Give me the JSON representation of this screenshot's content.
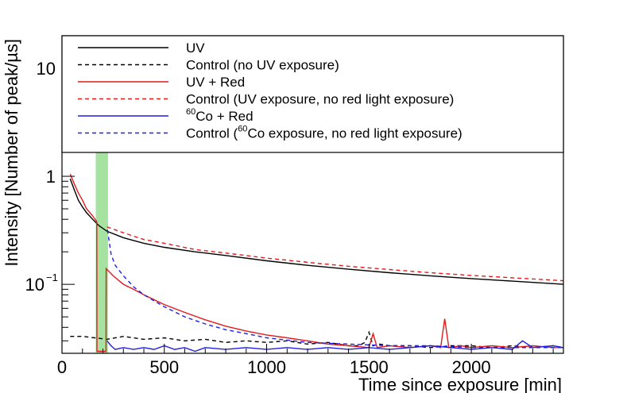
{
  "chart_data": {
    "type": "line",
    "title": "",
    "xlabel": "Time since exposure [min]",
    "ylabel": "Intensity [Number of peak/µs]",
    "xscale": "linear",
    "yscale": "log",
    "xlim": [
      0,
      2450
    ],
    "ylim": [
      0.023,
      20
    ],
    "x_ticks": [
      0,
      500,
      1000,
      1500,
      2000
    ],
    "x_tick_labels": [
      "0",
      "500",
      "1000",
      "1500",
      "2000"
    ],
    "y_ticks": [
      0.1,
      1,
      10
    ],
    "y_tick_labels_main": [
      "10",
      "1",
      "10"
    ],
    "y_tick_label_exponent": "−1",
    "legend_location": "top",
    "highlight_band": {
      "x_range": [
        165,
        225
      ],
      "color": "#a6e3a1",
      "label": ""
    },
    "colors": {
      "black": "#000000",
      "red": "#e41a1c",
      "blue": "#1f1fe6"
    },
    "series": [
      {
        "name": "UV",
        "label_main": "UV",
        "label_sup": "",
        "label_rest": "",
        "color": "#000000",
        "dash": "solid",
        "x": [
          40,
          60,
          80,
          100,
          120,
          150,
          180,
          220,
          300,
          400,
          500,
          650,
          800,
          1000,
          1200,
          1400,
          1600,
          1800,
          2000,
          2200,
          2450
        ],
        "y": [
          0.95,
          0.75,
          0.6,
          0.52,
          0.46,
          0.4,
          0.35,
          0.31,
          0.27,
          0.24,
          0.22,
          0.2,
          0.185,
          0.165,
          0.15,
          0.138,
          0.128,
          0.12,
          0.113,
          0.107,
          0.1
        ]
      },
      {
        "name": "Control (no UV exposure)",
        "label_main": "Control (no UV exposure)",
        "label_sup": "",
        "label_rest": "",
        "color": "#000000",
        "dash": "dashed",
        "x": [
          40,
          100,
          160,
          220,
          300,
          400,
          500,
          600,
          700,
          800,
          900,
          1000,
          1100,
          1200,
          1300,
          1400,
          1450,
          1480,
          1500,
          1520,
          1550,
          1600,
          1700,
          1800,
          1900,
          2000,
          2100,
          2200,
          2300,
          2400,
          2450
        ],
        "y": [
          0.033,
          0.033,
          0.032,
          0.031,
          0.033,
          0.031,
          0.032,
          0.03,
          0.031,
          0.029,
          0.03,
          0.029,
          0.03,
          0.028,
          0.029,
          0.027,
          0.027,
          0.029,
          0.036,
          0.027,
          0.028,
          0.027,
          0.027,
          0.026,
          0.027,
          0.027,
          0.026,
          0.027,
          0.026,
          0.027,
          0.026
        ]
      },
      {
        "name": "UV + Red",
        "label_main": "UV + Red",
        "label_sup": "",
        "label_rest": "",
        "color": "#e41a1c",
        "dash": "solid",
        "x": [
          40,
          60,
          80,
          100,
          120,
          150,
          170,
          171,
          215,
          216,
          250,
          300,
          350,
          400,
          500,
          600,
          700,
          800,
          900,
          1000,
          1100,
          1200,
          1300,
          1400,
          1500,
          1520,
          1540,
          1600,
          1700,
          1800,
          1850,
          1870,
          1890,
          1950,
          2000,
          2100,
          2200,
          2300,
          2400,
          2450
        ],
        "y": [
          1.05,
          0.85,
          0.7,
          0.6,
          0.5,
          0.43,
          0.38,
          0.024,
          0.024,
          0.14,
          0.12,
          0.1,
          0.09,
          0.08,
          0.065,
          0.055,
          0.047,
          0.041,
          0.037,
          0.034,
          0.032,
          0.03,
          0.028,
          0.027,
          0.026,
          0.035,
          0.026,
          0.027,
          0.026,
          0.027,
          0.026,
          0.048,
          0.026,
          0.027,
          0.026,
          0.027,
          0.026,
          0.027,
          0.026,
          0.026
        ]
      },
      {
        "name": "Control (UV exposure, no red light exposure)",
        "label_main": "Control (UV exposure, no red light exposure)",
        "label_sup": "",
        "label_rest": "",
        "color": "#e41a1c",
        "dash": "dashed",
        "x": [
          220,
          300,
          400,
          500,
          650,
          800,
          1000,
          1200,
          1400,
          1600,
          1800,
          2000,
          2200,
          2450
        ],
        "y": [
          0.34,
          0.3,
          0.26,
          0.24,
          0.21,
          0.195,
          0.175,
          0.16,
          0.147,
          0.137,
          0.128,
          0.121,
          0.115,
          0.108
        ]
      },
      {
        "name": "60Co + Red",
        "label_main": "",
        "label_sup": "60",
        "label_rest": "Co + Red",
        "color": "#1f1fe6",
        "dash": "solid",
        "x": [
          220,
          240,
          260,
          300,
          350,
          400,
          450,
          500,
          550,
          600,
          650,
          700,
          800,
          900,
          1000,
          1100,
          1200,
          1300,
          1400,
          1500,
          1600,
          1700,
          1800,
          1900,
          2000,
          2100,
          2200,
          2250,
          2300,
          2400,
          2450
        ],
        "y": [
          0.03,
          0.027,
          0.025,
          0.026,
          0.025,
          0.026,
          0.025,
          0.027,
          0.025,
          0.026,
          0.024,
          0.026,
          0.025,
          0.026,
          0.025,
          0.026,
          0.025,
          0.026,
          0.025,
          0.026,
          0.025,
          0.026,
          0.027,
          0.026,
          0.025,
          0.026,
          0.025,
          0.03,
          0.026,
          0.027,
          0.026
        ]
      },
      {
        "name": "Control (60Co exposure, no red light exposure)",
        "label_main": "Control (",
        "label_sup": "60",
        "label_rest": "Co exposure, no red light exposure)",
        "color": "#1f1fe6",
        "dash": "dashed",
        "x": [
          222,
          240,
          260,
          300,
          350,
          400,
          500,
          600,
          700,
          800,
          900,
          1000,
          1200,
          1400,
          1600,
          1800,
          2000,
          2200,
          2450
        ],
        "y": [
          0.32,
          0.19,
          0.15,
          0.12,
          0.095,
          0.08,
          0.062,
          0.05,
          0.043,
          0.038,
          0.035,
          0.032,
          0.029,
          0.028,
          0.027,
          0.027,
          0.026,
          0.026,
          0.026
        ]
      }
    ]
  }
}
